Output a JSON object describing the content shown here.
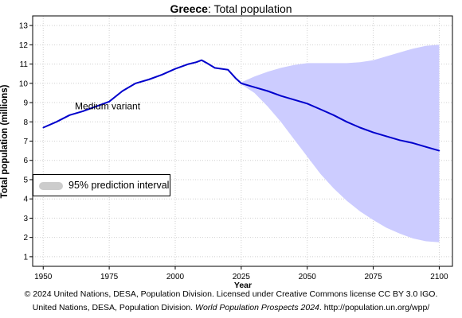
{
  "chart_data": {
    "type": "line",
    "title_bold": "Greece",
    "title_rest": ": Total population",
    "xlabel": "Year",
    "ylabel": "Total population (millions)",
    "xlim": [
      1946,
      2105
    ],
    "ylim": [
      0.5,
      13.5
    ],
    "xticks": [
      1950,
      1975,
      2000,
      2025,
      2050,
      2075,
      2100
    ],
    "yticks": [
      1,
      2,
      3,
      4,
      5,
      6,
      7,
      8,
      9,
      10,
      11,
      12,
      13
    ],
    "grid": true,
    "series_color": "#0000cc",
    "band_color": "#ccccff",
    "series": [
      {
        "name": "Medium variant",
        "x": [
          1950,
          1955,
          1960,
          1965,
          1970,
          1975,
          1980,
          1985,
          1990,
          1995,
          2000,
          2005,
          2008,
          2010,
          2012,
          2015,
          2020,
          2023,
          2025,
          2030,
          2035,
          2040,
          2045,
          2050,
          2055,
          2060,
          2065,
          2070,
          2075,
          2080,
          2085,
          2090,
          2095,
          2100
        ],
        "y": [
          7.7,
          8.0,
          8.35,
          8.55,
          8.8,
          9.05,
          9.6,
          10.0,
          10.2,
          10.45,
          10.75,
          11.0,
          11.1,
          11.2,
          11.05,
          10.8,
          10.7,
          10.25,
          10.0,
          9.8,
          9.6,
          9.35,
          9.15,
          8.95,
          8.65,
          8.35,
          8.0,
          7.7,
          7.45,
          7.25,
          7.05,
          6.9,
          6.7,
          6.5
        ]
      }
    ],
    "prediction_interval": {
      "name": "95% prediction interval",
      "x": [
        2023,
        2025,
        2030,
        2035,
        2040,
        2045,
        2050,
        2055,
        2060,
        2065,
        2070,
        2075,
        2080,
        2085,
        2090,
        2095,
        2100
      ],
      "lower": [
        10.2,
        9.95,
        9.5,
        8.8,
        8.0,
        7.1,
        6.2,
        5.3,
        4.55,
        3.9,
        3.35,
        2.9,
        2.5,
        2.2,
        1.95,
        1.8,
        1.75
      ],
      "upper": [
        10.2,
        10.05,
        10.35,
        10.6,
        10.8,
        10.95,
        11.05,
        11.05,
        11.05,
        11.05,
        11.1,
        11.2,
        11.4,
        11.6,
        11.8,
        11.95,
        12.0
      ]
    },
    "annotations": [
      {
        "text": "Medium variant",
        "x": 1962,
        "y": 8.65
      }
    ]
  },
  "footer": {
    "line1": "© 2024 United Nations, DESA, Population Division. Licensed under Creative Commons license CC BY 3.0 IGO.",
    "line2_pre": "United Nations, DESA, Population Division. ",
    "line2_italic": "World Population Prospects 2024",
    "line2_post": ". http://population.un.org/wpp/"
  },
  "legend": {
    "label": "95% prediction interval"
  }
}
